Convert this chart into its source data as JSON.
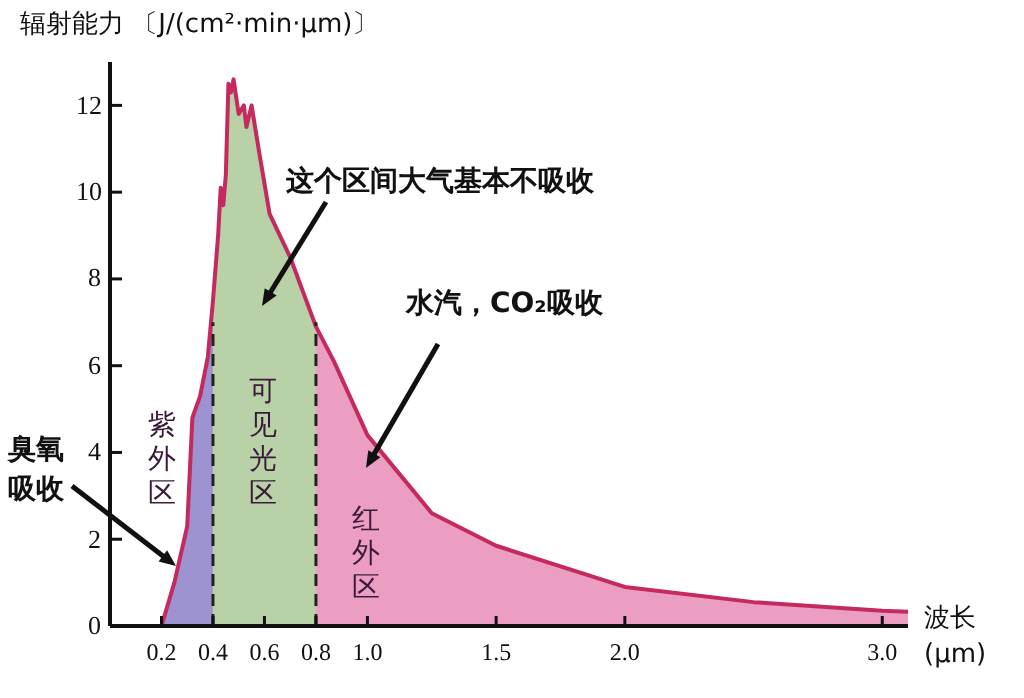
{
  "chart_data": {
    "type": "area",
    "ylabel": "辐射能力 〔J/(cm²·min·μm)〕",
    "xlabel": "波长 (μm)",
    "xlim": [
      0,
      3.1
    ],
    "ylim": [
      0,
      13
    ],
    "xticks": [
      0.2,
      0.4,
      0.6,
      0.8,
      {
        "value": 1,
        "label": "1.0"
      },
      1.5,
      {
        "value": 2,
        "label": "2.0"
      },
      {
        "value": 3,
        "label": "3.0"
      }
    ],
    "yticks": [
      0,
      2,
      4,
      6,
      8,
      10,
      12
    ],
    "grid": false,
    "series": [
      {
        "name": "紫外区",
        "color": "#9d93d0",
        "x": [
          0.2,
          0.25,
          0.3,
          0.32,
          0.35,
          0.38,
          0.4
        ],
        "values": [
          0,
          1.0,
          2.3,
          4.8,
          5.3,
          6.2,
          7.5
        ]
      },
      {
        "name": "可见光区",
        "color": "#b8d1a6",
        "x": [
          0.4,
          0.42,
          0.43,
          0.44,
          0.45,
          0.46,
          0.47,
          0.48,
          0.5,
          0.52,
          0.53,
          0.55,
          0.58,
          0.62,
          0.7,
          0.8
        ],
        "values": [
          7.5,
          9.0,
          10.1,
          9.7,
          10.4,
          12.5,
          12.3,
          12.6,
          11.8,
          12.0,
          11.5,
          12.0,
          10.9,
          9.5,
          8.5,
          6.9
        ]
      },
      {
        "name": "红外区",
        "color": "#eb9dc2",
        "x": [
          0.8,
          0.87,
          1.0,
          1.25,
          1.5,
          2.0,
          2.5,
          3.0,
          3.1
        ],
        "values": [
          6.9,
          6.1,
          4.4,
          2.6,
          1.85,
          0.9,
          0.55,
          0.35,
          0.33
        ]
      },
      {
        "type": "line",
        "color": "#c42a5e",
        "x": [
          0.2,
          0.25,
          0.3,
          0.32,
          0.35,
          0.38,
          0.4,
          0.42,
          0.43,
          0.44,
          0.45,
          0.46,
          0.47,
          0.48,
          0.5,
          0.52,
          0.53,
          0.55,
          0.58,
          0.62,
          0.7,
          0.8,
          0.87,
          1.0,
          1.25,
          1.5,
          2.0,
          2.5,
          3.0,
          3.1
        ],
        "values": [
          0,
          1.0,
          2.3,
          4.8,
          5.3,
          6.2,
          7.5,
          9.0,
          10.1,
          9.7,
          10.4,
          12.5,
          12.3,
          12.6,
          11.8,
          12.0,
          11.5,
          12.0,
          10.9,
          9.5,
          8.5,
          6.9,
          6.1,
          4.4,
          2.6,
          1.85,
          0.9,
          0.55,
          0.35,
          0.33
        ]
      }
    ],
    "ref_lines": [
      {
        "axis": "x",
        "value": 0.4,
        "color": "#222222",
        "line_style": "dashed"
      },
      {
        "axis": "x",
        "value": 0.8,
        "color": "#222222",
        "line_style": "dashed"
      }
    ],
    "annotations": [
      "这个区间大气基本不吸收",
      "水汽，CO₂吸收",
      "臭氧吸收"
    ]
  }
}
